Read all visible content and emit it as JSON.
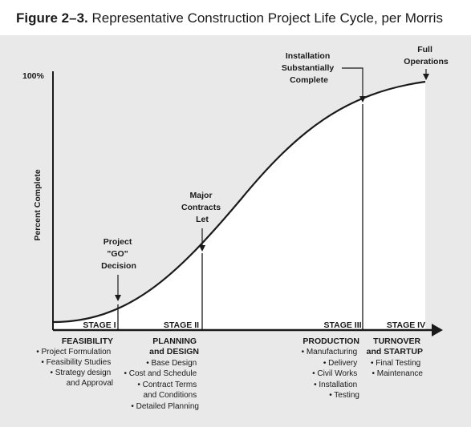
{
  "title": {
    "figure_number": "Figure 2–3.",
    "text": "Representative Construction Project Life Cycle, per Morris"
  },
  "y_axis": {
    "label": "Percent Complete",
    "top_tick": "100%"
  },
  "annotations": {
    "go_decision": [
      "Project",
      "\"GO\"",
      "Decision"
    ],
    "major_contracts": [
      "Major",
      "Contracts",
      "Let"
    ],
    "installation": [
      "Installation",
      "Substantially",
      "Complete"
    ],
    "full_operations": [
      "Full",
      "Operations"
    ]
  },
  "stages": [
    {
      "stage": "STAGE I",
      "heading": [
        "FEASIBILITY"
      ],
      "items": [
        "• Project Formulation",
        "• Feasibility Studies",
        "• Strategy design",
        "and Approval"
      ]
    },
    {
      "stage": "STAGE II",
      "heading": [
        "PLANNING",
        "and DESIGN"
      ],
      "items": [
        "• Base Design",
        "• Cost and Schedule",
        "• Contract Terms",
        "and Conditions",
        "• Detailed Planning"
      ]
    },
    {
      "stage": "STAGE III",
      "heading": [
        "PRODUCTION"
      ],
      "items": [
        "• Manufacturing",
        "• Delivery",
        "• Civil Works",
        "• Installation",
        "• Testing"
      ]
    },
    {
      "stage": "STAGE IV",
      "heading": [
        "TURNOVER",
        "and STARTUP"
      ],
      "items": [
        "• Final Testing",
        "• Maintenance"
      ]
    }
  ],
  "colors": {
    "background_panel": "#e9e9e9",
    "curve_fill": "#ffffff",
    "ink": "#1a1a1a"
  }
}
